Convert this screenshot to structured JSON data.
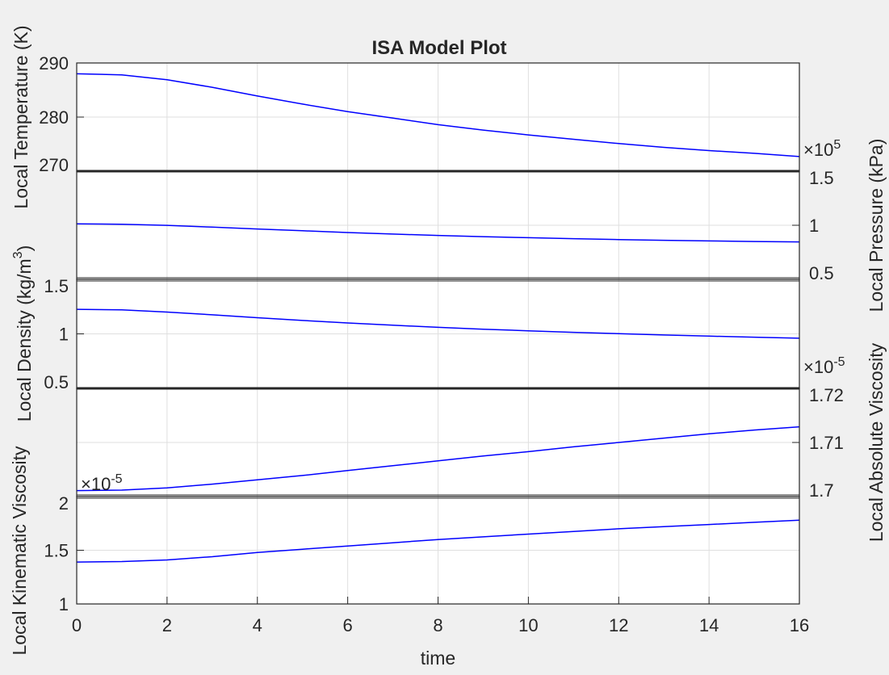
{
  "figure": {
    "title": "ISA Model Plot",
    "background": "#f0f0f0",
    "plot_background": "#ffffff",
    "line_color": "#0000ff",
    "grid_color": "#dfdfdf",
    "axis_color": "#262626"
  },
  "chart_data": [
    {
      "type": "line",
      "panel": "temperature",
      "ylabel": "Local Temperature (K)",
      "y_side": "left",
      "ylim": [
        270,
        290
      ],
      "yticks": [
        270,
        280,
        290
      ],
      "ytick_labels": [
        "270",
        "280",
        "290"
      ],
      "exponent_label": "",
      "x": [
        0,
        1,
        2,
        3,
        4,
        5,
        6,
        7,
        8,
        9,
        10,
        11,
        12,
        13,
        14,
        15,
        16
      ],
      "y": [
        288.0,
        287.8,
        286.9,
        285.5,
        283.9,
        282.4,
        281.0,
        279.8,
        278.6,
        277.6,
        276.7,
        275.9,
        275.1,
        274.4,
        273.8,
        273.3,
        272.7
      ],
      "grid": true
    },
    {
      "type": "line",
      "panel": "pressure",
      "ylabel": "Local Pressure (kPa)",
      "y_side": "right",
      "ylim": [
        50000,
        150000
      ],
      "yticks": [
        50000,
        100000,
        150000
      ],
      "ytick_labels": [
        "0.5",
        "1",
        "1.5"
      ],
      "exponent_label": "×10",
      "exponent_power": "5",
      "x": [
        0,
        1,
        2,
        3,
        4,
        5,
        6,
        7,
        8,
        9,
        10,
        11,
        12,
        13,
        14,
        15,
        16
      ],
      "y": [
        101300,
        101000,
        99900,
        98300,
        96600,
        94900,
        93300,
        91900,
        90600,
        89500,
        88500,
        87600,
        86800,
        86100,
        85500,
        85000,
        84600
      ],
      "grid": true
    },
    {
      "type": "line",
      "panel": "density",
      "ylabel": "Local Density (kg/m",
      "ylabel_power": "3",
      "ylabel_tail": ")",
      "y_side": "left",
      "ylim": [
        0.5,
        1.5
      ],
      "yticks": [
        0.5,
        1,
        1.5
      ],
      "ytick_labels": [
        "0.5",
        "1",
        "1.5"
      ],
      "exponent_label": "",
      "x": [
        0,
        1,
        2,
        3,
        4,
        5,
        6,
        7,
        8,
        9,
        10,
        11,
        12,
        13,
        14,
        15,
        16
      ],
      "y": [
        1.225,
        1.22,
        1.2,
        1.175,
        1.148,
        1.123,
        1.1,
        1.079,
        1.06,
        1.043,
        1.028,
        1.014,
        1.002,
        0.99,
        0.979,
        0.97,
        0.96
      ],
      "grid": true
    },
    {
      "type": "line",
      "panel": "absolute-viscosity",
      "ylabel": "Local Absolute Viscosity",
      "y_side": "right",
      "ylim": [
        1.7e-05,
        1.72e-05
      ],
      "yticks": [
        1.7e-05,
        1.71e-05,
        1.72e-05
      ],
      "ytick_labels": [
        "1.7",
        "1.71",
        "1.72"
      ],
      "exponent_label": "×10",
      "exponent_power": "-5",
      "x": [
        0,
        1,
        2,
        3,
        4,
        5,
        6,
        7,
        8,
        9,
        10,
        11,
        12,
        13,
        14,
        15,
        16
      ],
      "y": [
        1.7011e-05,
        1.7012e-05,
        1.7016e-05,
        1.7023e-05,
        1.7031e-05,
        1.7039e-05,
        1.7048e-05,
        1.7057e-05,
        1.7066e-05,
        1.7075e-05,
        1.7083e-05,
        1.7092e-05,
        1.71e-05,
        1.7108e-05,
        1.7116e-05,
        1.7123e-05,
        1.7129e-05
      ],
      "grid": true
    },
    {
      "type": "line",
      "panel": "kinematic-viscosity",
      "ylabel": "Local Kinematic Viscosity",
      "y_side": "left",
      "ylim": [
        1e-05,
        2e-05
      ],
      "yticks": [
        1e-05,
        1.5e-05,
        2e-05
      ],
      "ytick_labels": [
        "1",
        "1.5",
        "2"
      ],
      "exponent_label": "×10",
      "exponent_power": "-5",
      "x": [
        0,
        1,
        2,
        3,
        4,
        5,
        6,
        7,
        8,
        9,
        10,
        11,
        12,
        13,
        14,
        15,
        16
      ],
      "y": [
        1.39e-05,
        1.395e-05,
        1.41e-05,
        1.44e-05,
        1.48e-05,
        1.51e-05,
        1.54e-05,
        1.57e-05,
        1.6e-05,
        1.625e-05,
        1.65e-05,
        1.675e-05,
        1.7e-05,
        1.72e-05,
        1.74e-05,
        1.76e-05,
        1.78e-05
      ],
      "grid": true,
      "xlabel": "time",
      "xlim": [
        0,
        16
      ],
      "xticks": [
        0,
        2,
        4,
        6,
        8,
        10,
        12,
        14,
        16
      ],
      "xtick_labels": [
        "0",
        "2",
        "4",
        "6",
        "8",
        "10",
        "12",
        "14",
        "16"
      ]
    }
  ]
}
